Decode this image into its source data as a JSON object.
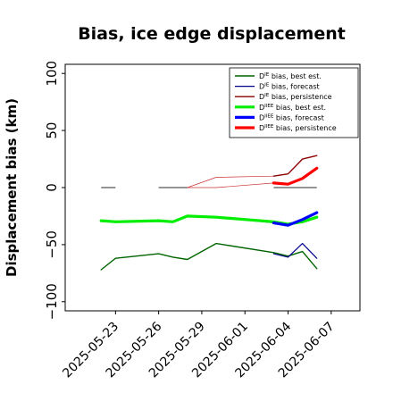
{
  "chart_data": {
    "type": "line",
    "title": "Bias, ice edge displacement",
    "xlabel": "",
    "ylabel": "Displacement bias (km)",
    "xlim": [
      "2025-05-19T12:00",
      "2025-06-09"
    ],
    "ylim": [
      -108,
      108
    ],
    "x_ticks": [
      "2025-05-23",
      "2025-05-26",
      "2025-05-29",
      "2025-06-01",
      "2025-06-04",
      "2025-06-07"
    ],
    "y_ticks": [
      -100,
      -50,
      0,
      50,
      100
    ],
    "y_tick_labels": [
      "−100",
      "−50",
      "0",
      "50",
      "100"
    ],
    "highlighted_x_tick": "2025-05-29",
    "highlight_color": "#1a8a1a",
    "grid": false,
    "legend_position": "top-right",
    "zero_segments": [
      {
        "x": [
          "2025-05-22T00:00",
          "2025-05-23T00:00"
        ],
        "y": 0
      },
      {
        "x": [
          "2025-05-26T00:00",
          "2025-05-28T00:00"
        ],
        "y": 0
      },
      {
        "x": [
          "2025-06-03T00:00",
          "2025-06-06T00:00"
        ],
        "y": 0
      }
    ],
    "zero_segment_color": "#555555",
    "series": [
      {
        "legend": {
          "prefix": "D",
          "sup": "IE",
          "text": " bias, best est."
        },
        "color": "#006400",
        "width": 1.4,
        "x": [
          "2025-05-22T00:00",
          "2025-05-23T00:00",
          "2025-05-26T00:00",
          "2025-05-27T00:00",
          "2025-05-28T00:00",
          "2025-05-30T00:00",
          "2025-06-03T00:00",
          "2025-06-04T00:00",
          "2025-06-05T00:00",
          "2025-06-06T00:00"
        ],
        "y": [
          -72,
          -62,
          -58,
          -61,
          -63,
          -49,
          -57,
          -60,
          -56,
          -71
        ]
      },
      {
        "legend": {
          "prefix": "D",
          "sup": "IE",
          "text": " bias, forecast"
        },
        "color": "#00008b",
        "width": 1.2,
        "x": [
          "2025-06-03T00:00",
          "2025-06-04T00:00",
          "2025-06-05T00:00",
          "2025-06-06T00:00"
        ],
        "y": [
          -58,
          -61,
          -49,
          -62
        ]
      },
      {
        "legend": {
          "prefix": "D",
          "sup": "IE",
          "text": " bias, persistence"
        },
        "color": "#8b0000",
        "width": 1.4,
        "x": [
          "2025-06-03T00:00",
          "2025-06-04T00:00",
          "2025-06-05T00:00",
          "2025-06-06T00:00"
        ],
        "y": [
          10,
          12,
          25,
          28
        ]
      },
      {
        "legend": {
          "prefix": "D",
          "sup": "IIEE",
          "text": " bias, best est."
        },
        "color": "#00ee00",
        "width": 3.2,
        "x": [
          "2025-05-22T00:00",
          "2025-05-23T00:00",
          "2025-05-26T00:00",
          "2025-05-27T00:00",
          "2025-05-28T00:00",
          "2025-05-30T00:00",
          "2025-06-03T00:00",
          "2025-06-04T00:00",
          "2025-06-05T00:00",
          "2025-06-06T00:00"
        ],
        "y": [
          -29,
          -30,
          -29,
          -30,
          -25,
          -26,
          -30,
          -32,
          -30,
          -26
        ]
      },
      {
        "legend": {
          "prefix": "D",
          "sup": "IIEE",
          "text": " bias, forecast"
        },
        "color": "#0000ff",
        "width": 3.2,
        "x": [
          "2025-06-03T00:00",
          "2025-06-04T00:00",
          "2025-06-05T00:00",
          "2025-06-06T00:00"
        ],
        "y": [
          -31,
          -33,
          -28,
          -22
        ]
      },
      {
        "legend": {
          "prefix": "D",
          "sup": "IIEE",
          "text": " bias, persistence"
        },
        "color": "#ff0000",
        "width": 3.2,
        "x": [
          "2025-06-03T00:00",
          "2025-06-04T00:00",
          "2025-06-05T00:00",
          "2025-06-06T00:00"
        ],
        "y": [
          4,
          3,
          8,
          17
        ]
      }
    ],
    "thin_background_lines": [
      {
        "color": "#006400",
        "x": [
          "2025-05-30T00:00",
          "2025-06-03T00:00"
        ],
        "y": [
          -49,
          -57
        ]
      },
      {
        "color": "#cc3333",
        "x": [
          "2025-05-28T00:00",
          "2025-05-30T00:00",
          "2025-06-03T00:00"
        ],
        "y": [
          0,
          9,
          10
        ]
      },
      {
        "color": "#cc3333",
        "x": [
          "2025-05-28T00:00",
          "2025-05-30T00:00",
          "2025-06-03T00:00"
        ],
        "y": [
          0,
          0,
          4
        ]
      },
      {
        "color": "#00008b",
        "x": [
          "2025-05-30T00:00",
          "2025-06-03T00:00"
        ],
        "y": [
          -26,
          -31
        ]
      }
    ]
  }
}
